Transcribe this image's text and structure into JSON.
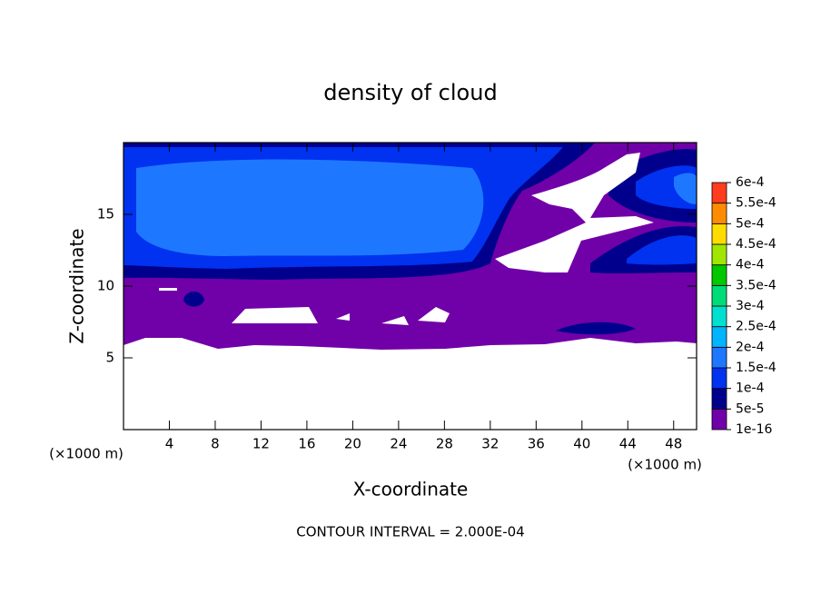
{
  "chart_data": {
    "type": "contour",
    "title": "density of cloud",
    "x_label": "X-coordinate",
    "y_label": "Z-coordinate",
    "x_unit_label": "(×1000 m)",
    "footnote": "CONTOUR INTERVAL = 2.000E-04",
    "xlim": [
      0,
      50
    ],
    "xticks": [
      4,
      8,
      12,
      16,
      20,
      24,
      28,
      32,
      36,
      40,
      44,
      48
    ],
    "ylim": [
      0,
      20
    ],
    "yticks": [
      5,
      10,
      15
    ],
    "colorbar": {
      "levels": [
        {
          "value": 1e-16,
          "label": "1e-16"
        },
        {
          "value": 5e-05,
          "label": "5e-5"
        },
        {
          "value": 0.0001,
          "label": "1e-4"
        },
        {
          "value": 0.00015,
          "label": "1.5e-4"
        },
        {
          "value": 0.0002,
          "label": "2e-4"
        },
        {
          "value": 0.00025,
          "label": "2.5e-4"
        },
        {
          "value": 0.0003,
          "label": "3e-4"
        },
        {
          "value": 0.00035,
          "label": "3.5e-4"
        },
        {
          "value": 0.0004,
          "label": "4e-4"
        },
        {
          "value": 0.00045,
          "label": "4.5e-4"
        },
        {
          "value": 0.0005,
          "label": "5e-4"
        },
        {
          "value": 0.00055,
          "label": "5.5e-4"
        },
        {
          "value": 0.0006,
          "label": "6e-4"
        }
      ],
      "colors": [
        "#7000a8",
        "#00008c",
        "#0032f0",
        "#1e78ff",
        "#00b4ff",
        "#00e0d0",
        "#00dc78",
        "#00c800",
        "#a0e600",
        "#ffdc00",
        "#ff8c00",
        "#ff3c1e"
      ]
    }
  }
}
